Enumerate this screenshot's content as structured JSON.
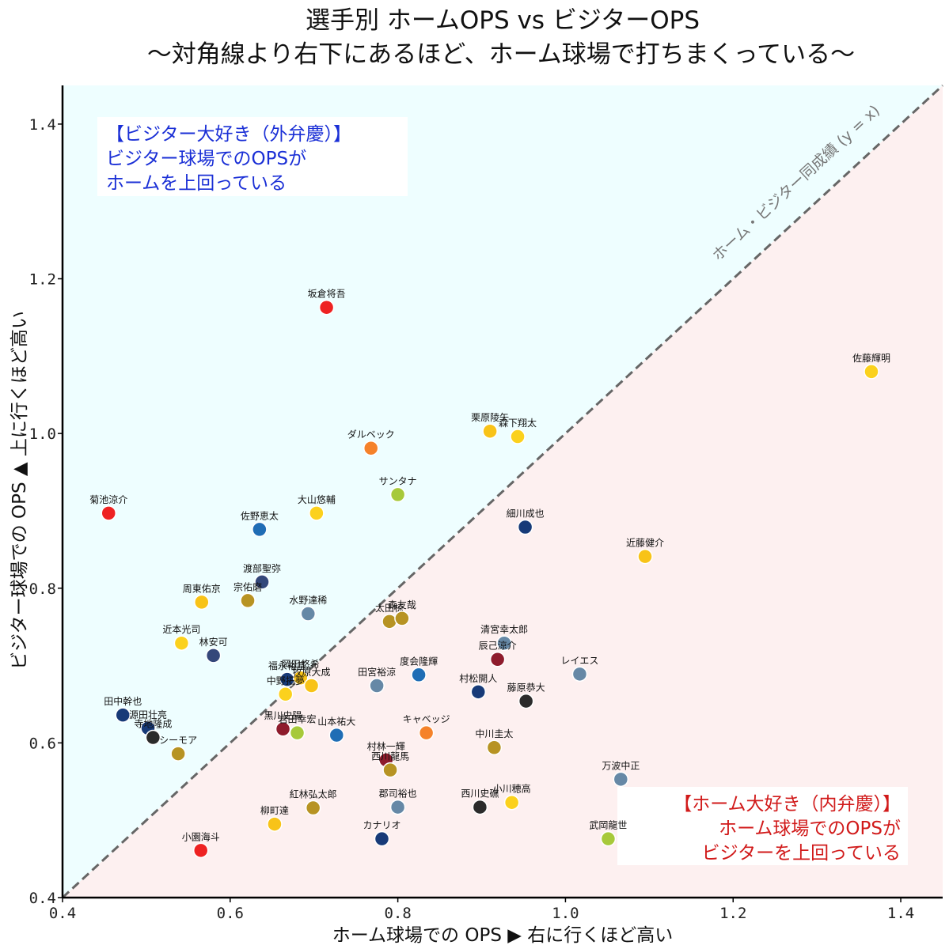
{
  "chart_data": {
    "type": "scatter",
    "title_line1": "選手別 ホームOPS vs ビジターOPS",
    "title_line2": "〜対角線より右下にあるほど、ホーム球場で打ちまくっている〜",
    "xlabel": "ホーム球場での OPS ▶ 右に行くほど高い",
    "ylabel": "ビジター球場での OPS ▲ 上に行くほど高い",
    "xlim": [
      0.4,
      1.45
    ],
    "ylim": [
      0.4,
      1.45
    ],
    "xticks": [
      "0.4",
      "0.6",
      "0.8",
      "1.0",
      "1.2",
      "1.4"
    ],
    "yticks": [
      "0.4",
      "0.6",
      "0.8",
      "1.0",
      "1.2",
      "1.4"
    ],
    "xtick_values": [
      0.4,
      0.6,
      0.8,
      1.0,
      1.2,
      1.4
    ],
    "ytick_values": [
      0.4,
      0.6,
      0.8,
      1.0,
      1.2,
      1.4
    ],
    "diagonal_label": "ホーム・ビジター同成績 (y = x)",
    "region_colors": {
      "upper": "#eefeff",
      "lower": "#fdf0f0"
    },
    "annotation_visitor": {
      "lines": [
        "【ビジター大好き（外弁慶）】",
        "ビジター球場でのOPSが",
        "ホームを上回っている"
      ],
      "color": "#1a2fd6"
    },
    "annotation_home": {
      "lines": [
        "【ホーム大好き（内弁慶）】",
        "ホーム球場でのOPSが",
        "ビジターを上回っている"
      ],
      "color": "#d11a1a"
    },
    "points": [
      {
        "name": "坂倉将吾",
        "x": 0.715,
        "y": 1.163,
        "color": "#ee2222"
      },
      {
        "name": "佐藤輝明",
        "x": 1.365,
        "y": 1.08,
        "color": "#fbd11d"
      },
      {
        "name": "栗原陵矢",
        "x": 0.91,
        "y": 1.003,
        "color": "#f8c318"
      },
      {
        "name": "森下翔太",
        "x": 0.943,
        "y": 0.996,
        "color": "#fbd11d"
      },
      {
        "name": "ダルベック",
        "x": 0.768,
        "y": 0.981,
        "color": "#f5822a"
      },
      {
        "name": "サンタナ",
        "x": 0.8,
        "y": 0.921,
        "color": "#a7c93a"
      },
      {
        "name": "菊池涼介",
        "x": 0.455,
        "y": 0.897,
        "color": "#ee2222"
      },
      {
        "name": "大山悠輔",
        "x": 0.703,
        "y": 0.897,
        "color": "#fbd11d"
      },
      {
        "name": "佐野恵太",
        "x": 0.635,
        "y": 0.876,
        "color": "#1f6db5"
      },
      {
        "name": "細川成也",
        "x": 0.952,
        "y": 0.879,
        "color": "#173a78"
      },
      {
        "name": "近藤健介",
        "x": 1.095,
        "y": 0.841,
        "color": "#f8c318"
      },
      {
        "name": "渡部聖弥",
        "x": 0.638,
        "y": 0.808,
        "color": "#34477a"
      },
      {
        "name": "周東佑京",
        "x": 0.566,
        "y": 0.782,
        "color": "#f8c318"
      },
      {
        "name": "宗佑磨",
        "x": 0.621,
        "y": 0.784,
        "color": "#b79323"
      },
      {
        "name": "水野達稀",
        "x": 0.693,
        "y": 0.767,
        "color": "#6688a6"
      },
      {
        "name": "太田椋",
        "x": 0.79,
        "y": 0.757,
        "color": "#b79323"
      },
      {
        "name": "森友哉",
        "x": 0.805,
        "y": 0.761,
        "color": "#b79323"
      },
      {
        "name": "近本光司",
        "x": 0.542,
        "y": 0.729,
        "color": "#fbd11d"
      },
      {
        "name": "林安可",
        "x": 0.58,
        "y": 0.713,
        "color": "#34477a"
      },
      {
        "name": "清宮幸太郎",
        "x": 0.927,
        "y": 0.729,
        "color": "#6688a6"
      },
      {
        "name": "辰己涼介",
        "x": 0.919,
        "y": 0.708,
        "color": "#8e1b2c"
      },
      {
        "name": "度会隆輝",
        "x": 0.825,
        "y": 0.688,
        "color": "#1f6db5"
      },
      {
        "name": "レイエス",
        "x": 1.017,
        "y": 0.689,
        "color": "#6688a6"
      },
      {
        "name": "福永裕基",
        "x": 0.668,
        "y": 0.682,
        "color": "#173a78"
      },
      {
        "name": "岡田悠希",
        "x": 0.684,
        "y": 0.684,
        "color": "#f8c318"
      },
      {
        "name": "牧原大成",
        "x": 0.697,
        "y": 0.674,
        "color": "#f8c318"
      },
      {
        "name": "田宮裕涼",
        "x": 0.775,
        "y": 0.674,
        "color": "#6688a6"
      },
      {
        "name": "村松開人",
        "x": 0.896,
        "y": 0.666,
        "color": "#173a78"
      },
      {
        "name": "藤原恭大",
        "x": 0.953,
        "y": 0.654,
        "color": "#2b2b2b"
      },
      {
        "name": "中野拓夢",
        "x": 0.666,
        "y": 0.663,
        "color": "#fbd11d"
      },
      {
        "name": "田中幹也",
        "x": 0.472,
        "y": 0.636,
        "color": "#173a78"
      },
      {
        "name": "源田壮亮",
        "x": 0.502,
        "y": 0.619,
        "color": "#173a78"
      },
      {
        "name": "寺地隆成",
        "x": 0.508,
        "y": 0.607,
        "color": "#2b2b2b"
      },
      {
        "name": "黒川史陽",
        "x": 0.663,
        "y": 0.618,
        "color": "#8e1b2c"
      },
      {
        "name": "岩田幸宏",
        "x": 0.68,
        "y": 0.613,
        "color": "#a7c93a"
      },
      {
        "name": "山本祐大",
        "x": 0.727,
        "y": 0.61,
        "color": "#1f6db5"
      },
      {
        "name": "キャベッジ",
        "x": 0.834,
        "y": 0.613,
        "color": "#f5822a"
      },
      {
        "name": "中川圭太",
        "x": 0.915,
        "y": 0.594,
        "color": "#b79323"
      },
      {
        "name": "シーモア",
        "x": 0.538,
        "y": 0.586,
        "color": "#b79323"
      },
      {
        "name": "村林一輝",
        "x": 0.786,
        "y": 0.578,
        "color": "#8e1b2c"
      },
      {
        "name": "西川龍馬",
        "x": 0.791,
        "y": 0.565,
        "color": "#b79323"
      },
      {
        "name": "万波中正",
        "x": 1.066,
        "y": 0.553,
        "color": "#6688a6"
      },
      {
        "name": "郡司裕也",
        "x": 0.8,
        "y": 0.517,
        "color": "#6688a6"
      },
      {
        "name": "西川史礁",
        "x": 0.898,
        "y": 0.517,
        "color": "#2b2b2b"
      },
      {
        "name": "小川穂高",
        "x": 0.936,
        "y": 0.523,
        "color": "#fbd11d"
      },
      {
        "name": "紅林弘太郎",
        "x": 0.699,
        "y": 0.516,
        "color": "#b79323"
      },
      {
        "name": "柳町達",
        "x": 0.653,
        "y": 0.495,
        "color": "#f8c318"
      },
      {
        "name": "武岡龍世",
        "x": 1.051,
        "y": 0.476,
        "color": "#a7c93a"
      },
      {
        "name": "カナリオ",
        "x": 0.781,
        "y": 0.476,
        "color": "#173a78"
      },
      {
        "name": "小園海斗",
        "x": 0.565,
        "y": 0.461,
        "color": "#ee2222"
      }
    ]
  }
}
